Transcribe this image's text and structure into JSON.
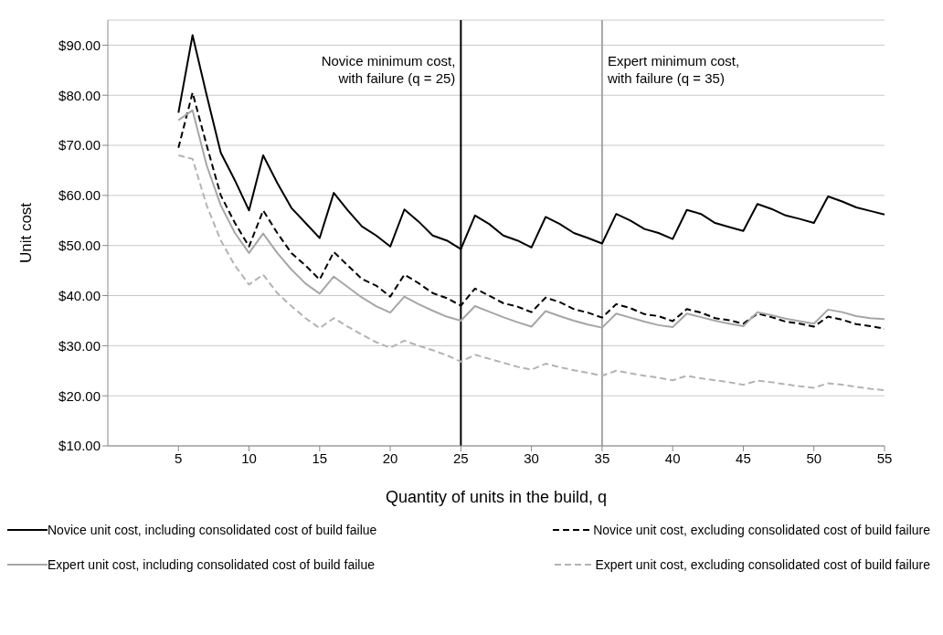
{
  "chart_data": {
    "type": "line",
    "xlabel": "Quantity of units in the build, q",
    "ylabel": "Unit cost",
    "x": [
      5,
      6,
      7,
      8,
      9,
      10,
      11,
      12,
      13,
      14,
      15,
      16,
      17,
      18,
      19,
      20,
      21,
      22,
      23,
      24,
      25,
      26,
      27,
      28,
      29,
      30,
      31,
      32,
      33,
      34,
      35,
      36,
      37,
      38,
      39,
      40,
      41,
      42,
      43,
      44,
      45,
      46,
      47,
      48,
      49,
      50,
      51,
      52,
      53,
      54,
      55
    ],
    "series": [
      {
        "name": "Novice unit cost, including consolidated cost of build failue",
        "color": "#000000",
        "line_style": "solid",
        "values": [
          76.5,
          92,
          80,
          68.5,
          63,
          57,
          68,
          62.5,
          57.5,
          54.5,
          51.5,
          60.5,
          57,
          53.8,
          52,
          49.8,
          57.2,
          54.8,
          52,
          51,
          49.3,
          56,
          54.3,
          52,
          51,
          49.6,
          55.7,
          54.3,
          52.5,
          51.5,
          50.4,
          56.3,
          55,
          53.3,
          52.5,
          51.3,
          57.1,
          56.3,
          54.5,
          53.7,
          52.9,
          58.3,
          57.3,
          56,
          55.3,
          54.5,
          59.8,
          58.8,
          57.6,
          56.9,
          56.2
        ]
      },
      {
        "name": "Novice unit cost, excluding consolidated cost of build failure",
        "color": "#000000",
        "line_style": "dashed",
        "values": [
          69.5,
          80.5,
          70,
          60,
          54.5,
          49.8,
          57,
          52.5,
          48.5,
          46,
          43.2,
          48.7,
          46,
          43.3,
          42,
          39.8,
          44.2,
          42.5,
          40.5,
          39.5,
          38,
          41.4,
          40,
          38.5,
          37.8,
          36.7,
          39.6,
          38.7,
          37.3,
          36.6,
          35.6,
          38.3,
          37.5,
          36.3,
          35.9,
          34.9,
          37.3,
          36.6,
          35.5,
          35.1,
          34.4,
          36.4,
          35.7,
          34.8,
          34.4,
          33.8,
          35.8,
          35.2,
          34.3,
          33.9,
          33.4
        ]
      },
      {
        "name": "Expert unit cost, including consolidated cost of build failue",
        "color": "#a6a6a6",
        "line_style": "solid",
        "values": [
          75,
          77,
          66,
          58,
          52.5,
          48.5,
          52.4,
          48.5,
          45.2,
          42.4,
          40.4,
          43.8,
          41.7,
          39.6,
          37.9,
          36.6,
          39.8,
          38.3,
          37,
          35.8,
          35,
          37.9,
          36.8,
          35.7,
          34.7,
          33.8,
          36.9,
          35.9,
          35,
          34.2,
          33.6,
          36.4,
          35.6,
          34.8,
          34.1,
          33.7,
          36.4,
          35.7,
          35,
          34.4,
          33.9,
          36.7,
          36.1,
          35.4,
          34.9,
          34.4,
          37.2,
          36.7,
          35.9,
          35.5,
          35.3
        ]
      },
      {
        "name": "Expert unit cost, excluding consolidated cost of build failure",
        "color": "#b3b3b3",
        "line_style": "dashed",
        "values": [
          68,
          67.3,
          58,
          51,
          46,
          42.2,
          44.2,
          40.5,
          37.9,
          35.5,
          33.5,
          35.5,
          33.8,
          32.2,
          30.7,
          29.6,
          31,
          30,
          29.1,
          28.1,
          26.8,
          28.2,
          27.4,
          26.6,
          25.8,
          25.2,
          26.4,
          25.7,
          25.1,
          24.6,
          24,
          25,
          24.5,
          24,
          23.6,
          23.1,
          24,
          23.5,
          23.1,
          22.7,
          22.2,
          23,
          22.7,
          22.3,
          21.9,
          21.6,
          22.5,
          22.2,
          21.8,
          21.4,
          21.1
        ]
      }
    ],
    "xlim": [
      0,
      55
    ],
    "xticks": [
      5,
      10,
      15,
      20,
      25,
      30,
      35,
      40,
      45,
      50,
      55
    ],
    "ylim": [
      10,
      95
    ],
    "yticks": [
      {
        "value": 10,
        "label": "$10.00"
      },
      {
        "value": 20,
        "label": "$20.00"
      },
      {
        "value": 30,
        "label": "$30.00"
      },
      {
        "value": 40,
        "label": "$40.00"
      },
      {
        "value": 50,
        "label": "$50.00"
      },
      {
        "value": 60,
        "label": "$60.00"
      },
      {
        "value": 70,
        "label": "$70.00"
      },
      {
        "value": 80,
        "label": "$80.00"
      },
      {
        "value": 90,
        "label": "$90.00"
      }
    ],
    "ref_lines": [
      {
        "axis": "x",
        "value": 25,
        "label": "Novice minimum cost, with failure (q = 25)",
        "color": "#000000"
      },
      {
        "axis": "x",
        "value": 35,
        "label": "Expert minimum cost, with failure (q = 35)",
        "color": "#a6a6a6"
      }
    ],
    "grid": "y",
    "legend": "bottom",
    "marker": "none"
  }
}
